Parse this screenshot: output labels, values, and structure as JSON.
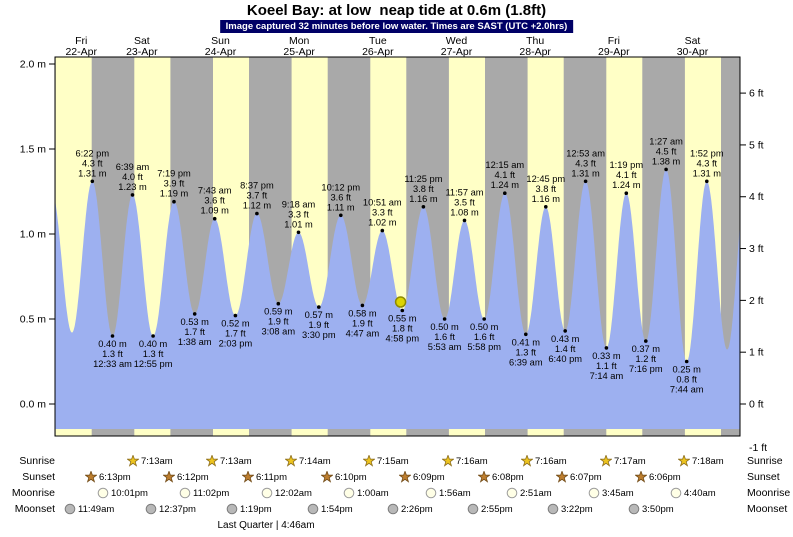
{
  "title": "Koeel Bay: at low  neap tide at 0.6m (1.8ft)",
  "banner": "Image captured 32 minutes before low water. Times are SAST (UTC +2.0hrs)",
  "chart_data": {
    "type": "area",
    "title": "Koeel Bay: at low  neap tide at 0.6m (1.8ft)",
    "subtitle": "Image captured 32 minutes before low water. Times are SAST (UTC +2.0hrs)",
    "y_axis_left": {
      "unit": "m",
      "values": [
        2.0,
        1.5,
        1.0,
        0.5,
        0.0
      ]
    },
    "y_axis_right": {
      "unit": "ft",
      "values": [
        6,
        5,
        4,
        3,
        2,
        1,
        0,
        -1
      ]
    },
    "days": [
      {
        "dow": "Fri",
        "date": "22-Apr"
      },
      {
        "dow": "Sat",
        "date": "23-Apr"
      },
      {
        "dow": "Sun",
        "date": "24-Apr"
      },
      {
        "dow": "Mon",
        "date": "25-Apr"
      },
      {
        "dow": "Tue",
        "date": "26-Apr"
      },
      {
        "dow": "Wed",
        "date": "27-Apr"
      },
      {
        "dow": "Thu",
        "date": "28-Apr"
      },
      {
        "dow": "Fri",
        "date": "29-Apr"
      },
      {
        "dow": "Sat",
        "date": "30-Apr"
      }
    ],
    "tide_events": [
      {
        "day": 0,
        "time": "6:22 pm",
        "type": "high",
        "ft": "4.3",
        "m": "1.31"
      },
      {
        "day": 1,
        "time": "12:33 am",
        "type": "low",
        "ft": "1.3",
        "m": "0.40"
      },
      {
        "day": 1,
        "time": "6:39 am",
        "type": "high",
        "ft": "4.0",
        "m": "1.23"
      },
      {
        "day": 1,
        "time": "12:55 pm",
        "type": "low",
        "ft": "1.3",
        "m": "0.40"
      },
      {
        "day": 1,
        "time": "7:19 pm",
        "type": "high",
        "ft": "3.9",
        "m": "1.19"
      },
      {
        "day": 2,
        "time": "1:38 am",
        "type": "low",
        "ft": "1.7",
        "m": "0.53"
      },
      {
        "day": 2,
        "time": "7:43 am",
        "type": "high",
        "ft": "3.6",
        "m": "1.09"
      },
      {
        "day": 2,
        "time": "2:03 pm",
        "type": "low",
        "ft": "1.7",
        "m": "0.52"
      },
      {
        "day": 2,
        "time": "8:37 pm",
        "type": "high",
        "ft": "3.7",
        "m": "1.12"
      },
      {
        "day": 3,
        "time": "3:08 am",
        "type": "low",
        "ft": "1.9",
        "m": "0.59"
      },
      {
        "day": 3,
        "time": "9:18 am",
        "type": "high",
        "ft": "3.3",
        "m": "1.01"
      },
      {
        "day": 3,
        "time": "3:30 pm",
        "type": "low",
        "ft": "1.9",
        "m": "0.57"
      },
      {
        "day": 3,
        "time": "10:12 pm",
        "type": "high",
        "ft": "3.6",
        "m": "1.11"
      },
      {
        "day": 4,
        "time": "4:47 am",
        "type": "low",
        "ft": "1.9",
        "m": "0.58"
      },
      {
        "day": 4,
        "time": "10:51 am",
        "type": "high",
        "ft": "3.3",
        "m": "1.02"
      },
      {
        "day": 4,
        "time": "4:58 pm",
        "type": "low",
        "ft": "1.8",
        "m": "0.55"
      },
      {
        "day": 4,
        "time": "11:25 pm",
        "type": "high",
        "ft": "3.8",
        "m": "1.16"
      },
      {
        "day": 5,
        "time": "5:53 am",
        "type": "low",
        "ft": "1.6",
        "m": "0.50"
      },
      {
        "day": 5,
        "time": "11:57 am",
        "type": "high",
        "ft": "3.5",
        "m": "1.08"
      },
      {
        "day": 5,
        "time": "5:58 pm",
        "type": "low",
        "ft": "1.6",
        "m": "0.50"
      },
      {
        "day": 6,
        "time": "12:15 am",
        "type": "high",
        "ft": "4.1",
        "m": "1.24"
      },
      {
        "day": 6,
        "time": "6:39 am",
        "type": "low",
        "ft": "1.3",
        "m": "0.41"
      },
      {
        "day": 6,
        "time": "12:45 pm",
        "type": "high",
        "ft": "3.8",
        "m": "1.16"
      },
      {
        "day": 6,
        "time": "6:40 pm",
        "type": "low",
        "ft": "1.4",
        "m": "0.43"
      },
      {
        "day": 7,
        "time": "12:53 am",
        "type": "high",
        "ft": "4.3",
        "m": "1.31"
      },
      {
        "day": 7,
        "time": "7:14 am",
        "type": "low",
        "ft": "1.1",
        "m": "0.33"
      },
      {
        "day": 7,
        "time": "1:19 pm",
        "type": "high",
        "ft": "4.1",
        "m": "1.24"
      },
      {
        "day": 7,
        "time": "7:16 pm",
        "type": "low",
        "ft": "1.2",
        "m": "0.37"
      },
      {
        "day": 8,
        "time": "1:27 am",
        "type": "high",
        "ft": "4.5",
        "m": "1.38"
      },
      {
        "day": 8,
        "time": "7:44 am",
        "type": "low",
        "ft": "0.8",
        "m": "0.25"
      },
      {
        "day": 8,
        "time": "1:52 pm",
        "type": "high",
        "ft": "4.3",
        "m": "1.31"
      }
    ],
    "curve_ends": [
      {
        "day": 0,
        "time": "6:00 am",
        "type": "high",
        "m": "1.25"
      },
      {
        "day": 0,
        "time": "12:10 pm",
        "type": "low",
        "m": "0.42"
      },
      {
        "day": 8,
        "time": "8:05 pm",
        "type": "low",
        "m": "0.32"
      },
      {
        "day": 9,
        "time": "2:10 am",
        "type": "high",
        "m": "1.35"
      }
    ],
    "current_marker": {
      "day": 4,
      "time": "4:26 pm",
      "m": "0.60"
    },
    "colors": {
      "day_band": "#ffffc6",
      "night_band": "#a9a9a9",
      "tide_fill": "#9db0f0",
      "date_red": "#ee0000",
      "banner_bg": "#000066",
      "banner_fg": "#ffffff",
      "marker_fill": "#dcd400",
      "marker_stroke": "#8f8a00",
      "sunrise_star": "#edc41e",
      "sunrise_stroke": "#8d6e1c",
      "sunset_star": "#bd7e2f",
      "sunset_stroke": "#714a16",
      "moonrise_fill": "#ffffe6",
      "moonrise_stroke": "#9d9d9d",
      "moonset_fill": "#b8b8b8",
      "moonset_stroke": "#7d7d7d"
    }
  },
  "astro": {
    "rows": [
      {
        "label": "Sunrise",
        "icon": "sunrise-star-icon",
        "events": [
          {
            "day": 1,
            "time": "7:13am"
          },
          {
            "day": 2,
            "time": "7:13am"
          },
          {
            "day": 3,
            "time": "7:14am"
          },
          {
            "day": 4,
            "time": "7:15am"
          },
          {
            "day": 5,
            "time": "7:16am"
          },
          {
            "day": 6,
            "time": "7:16am"
          },
          {
            "day": 7,
            "time": "7:17am"
          },
          {
            "day": 8,
            "time": "7:18am"
          }
        ]
      },
      {
        "label": "Sunset",
        "icon": "sunset-star-icon",
        "events": [
          {
            "day": 0,
            "time": "6:13pm"
          },
          {
            "day": 1,
            "time": "6:12pm"
          },
          {
            "day": 2,
            "time": "6:11pm"
          },
          {
            "day": 3,
            "time": "6:10pm"
          },
          {
            "day": 4,
            "time": "6:09pm"
          },
          {
            "day": 5,
            "time": "6:08pm"
          },
          {
            "day": 6,
            "time": "6:07pm"
          },
          {
            "day": 7,
            "time": "6:06pm"
          }
        ]
      },
      {
        "label": "Moonrise",
        "icon": "moonrise-circle-icon",
        "events": [
          {
            "day": 0,
            "time": "10:01pm"
          },
          {
            "day": 1,
            "time": "11:02pm"
          },
          {
            "day": 3,
            "time": "12:02am"
          },
          {
            "day": 4,
            "time": "1:00am"
          },
          {
            "day": 5,
            "time": "1:56am"
          },
          {
            "day": 6,
            "time": "2:51am"
          },
          {
            "day": 7,
            "time": "3:45am"
          },
          {
            "day": 8,
            "time": "4:40am"
          }
        ]
      },
      {
        "label": "Moonset",
        "icon": "moonset-circle-icon",
        "events": [
          {
            "day": 0,
            "time": "11:49am"
          },
          {
            "day": 1,
            "time": "12:37pm"
          },
          {
            "day": 2,
            "time": "1:19pm"
          },
          {
            "day": 3,
            "time": "1:54pm"
          },
          {
            "day": 4,
            "time": "2:26pm"
          },
          {
            "day": 5,
            "time": "2:55pm"
          },
          {
            "day": 6,
            "time": "3:22pm"
          },
          {
            "day": 7,
            "time": "3:50pm"
          }
        ]
      }
    ],
    "footer": "Last Quarter | 4:46am"
  }
}
